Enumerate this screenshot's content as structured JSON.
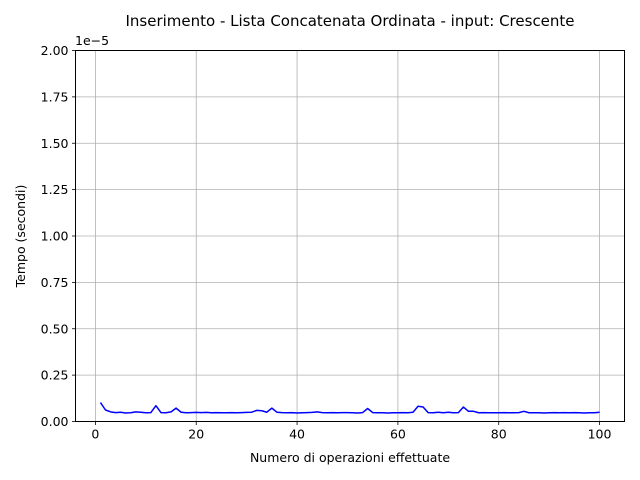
{
  "chart_data": {
    "type": "line",
    "title": "Inserimento - Lista Concatenata Ordinata - input: Crescente",
    "xlabel": "Numero di operazioni effettuate",
    "ylabel": "Tempo (secondi)",
    "y_offset_label": "1e−5",
    "xlim": [
      -3.95,
      104.95
    ],
    "ylim": [
      0,
      2.0
    ],
    "x_ticks": [
      0,
      20,
      40,
      60,
      80,
      100
    ],
    "x_tick_labels": [
      "0",
      "20",
      "40",
      "60",
      "80",
      "100"
    ],
    "y_ticks": [
      0,
      0.25,
      0.5,
      0.75,
      1.0,
      1.25,
      1.5,
      1.75,
      2.0
    ],
    "y_tick_labels": [
      "0.00",
      "0.25",
      "0.50",
      "0.75",
      "1.00",
      "1.25",
      "1.50",
      "1.75",
      "2.00"
    ],
    "grid": true,
    "series": [
      {
        "name": "Inserimento",
        "color": "#0000ff",
        "x": [
          1,
          2,
          3,
          4,
          5,
          6,
          7,
          8,
          9,
          10,
          11,
          12,
          13,
          14,
          15,
          16,
          17,
          18,
          19,
          20,
          21,
          22,
          23,
          24,
          25,
          26,
          27,
          28,
          29,
          30,
          31,
          32,
          33,
          34,
          35,
          36,
          37,
          38,
          39,
          40,
          41,
          42,
          43,
          44,
          45,
          46,
          47,
          48,
          49,
          50,
          51,
          52,
          53,
          54,
          55,
          56,
          57,
          58,
          59,
          60,
          61,
          62,
          63,
          64,
          65,
          66,
          67,
          68,
          69,
          70,
          71,
          72,
          73,
          74,
          75,
          76,
          77,
          78,
          79,
          80,
          81,
          82,
          83,
          84,
          85,
          86,
          87,
          88,
          89,
          90,
          91,
          92,
          93,
          94,
          95,
          96,
          97,
          98,
          99,
          100
        ],
        "values": [
          0.102,
          0.062,
          0.052,
          0.048,
          0.05,
          0.046,
          0.047,
          0.052,
          0.05,
          0.047,
          0.048,
          0.085,
          0.048,
          0.047,
          0.052,
          0.072,
          0.05,
          0.047,
          0.048,
          0.049,
          0.048,
          0.049,
          0.047,
          0.048,
          0.047,
          0.047,
          0.048,
          0.047,
          0.048,
          0.049,
          0.05,
          0.06,
          0.058,
          0.05,
          0.072,
          0.05,
          0.048,
          0.047,
          0.048,
          0.046,
          0.047,
          0.048,
          0.049,
          0.052,
          0.048,
          0.047,
          0.048,
          0.047,
          0.048,
          0.048,
          0.047,
          0.046,
          0.048,
          0.07,
          0.048,
          0.047,
          0.047,
          0.046,
          0.047,
          0.047,
          0.048,
          0.047,
          0.05,
          0.082,
          0.078,
          0.048,
          0.047,
          0.05,
          0.047,
          0.05,
          0.047,
          0.048,
          0.078,
          0.055,
          0.055,
          0.047,
          0.048,
          0.047,
          0.047,
          0.047,
          0.048,
          0.047,
          0.047,
          0.048,
          0.055,
          0.047,
          0.047,
          0.047,
          0.046,
          0.047,
          0.048,
          0.047,
          0.048,
          0.047,
          0.048,
          0.047,
          0.046,
          0.047,
          0.047,
          0.05
        ]
      }
    ]
  }
}
